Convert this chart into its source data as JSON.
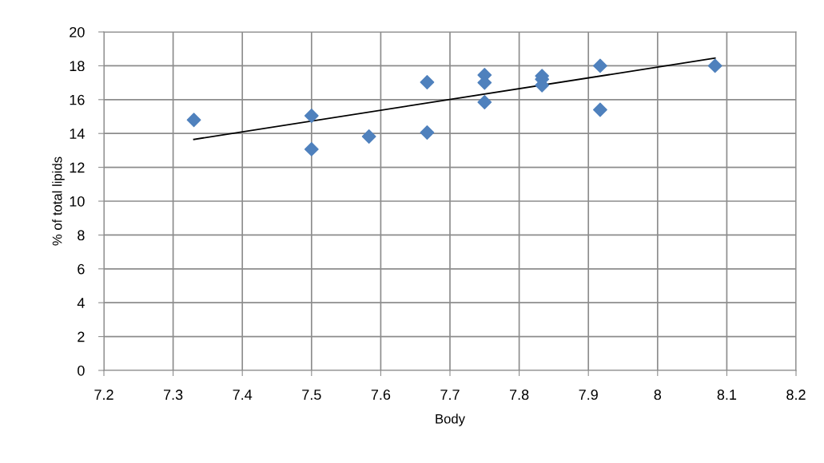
{
  "chart_data": {
    "type": "scatter",
    "xlabel": "Body",
    "ylabel": "% of total lipids",
    "xlim": [
      7.2,
      8.2
    ],
    "xticks": [
      7.2,
      7.3,
      7.4,
      7.5,
      7.6,
      7.7,
      7.8,
      7.9,
      {
        "value": 8.0,
        "label": "8"
      },
      8.1,
      8.2
    ],
    "ylim": [
      0,
      20
    ],
    "yticks": [
      0,
      2,
      4,
      6,
      8,
      10,
      12,
      14,
      16,
      18,
      20
    ],
    "grid": true,
    "series": [
      {
        "marker": "diamond",
        "color": "#4f81bd",
        "x": [
          7.33,
          7.5,
          7.5,
          7.583,
          7.667,
          7.667,
          7.75,
          7.75,
          7.75,
          7.833,
          7.833,
          7.833,
          7.917,
          7.917,
          8.083
        ],
        "values": [
          14.8,
          15.05,
          13.07,
          13.82,
          17.03,
          14.06,
          17.45,
          17.0,
          15.85,
          17.4,
          17.2,
          16.85,
          18.0,
          15.4,
          18.0
        ]
      },
      {
        "type": "line",
        "marker": "none",
        "color": "#000000",
        "x": [
          7.33,
          8.083
        ],
        "values": [
          13.65,
          18.45
        ]
      }
    ]
  }
}
